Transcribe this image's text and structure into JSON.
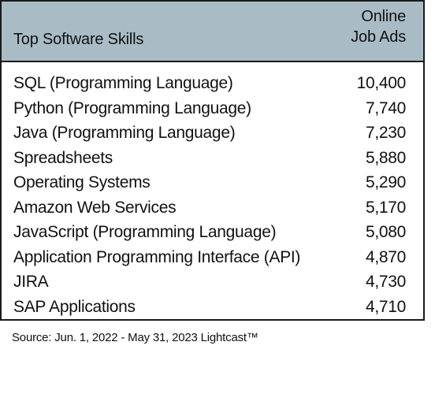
{
  "chart_data": {
    "type": "table",
    "columns": [
      "Top Software Skills",
      "Online Job Ads"
    ],
    "column_header_lines": {
      "skills": "Top Software Skills",
      "ads_line1": "Online",
      "ads_line2": "Job Ads"
    },
    "rows": [
      {
        "skill": "SQL (Programming Language)",
        "ads": "10,400",
        "value": 10400
      },
      {
        "skill": "Python (Programming Language)",
        "ads": "7,740",
        "value": 7740
      },
      {
        "skill": "Java (Programming Language)",
        "ads": "7,230",
        "value": 7230
      },
      {
        "skill": "Spreadsheets",
        "ads": "5,880",
        "value": 5880
      },
      {
        "skill": "Operating Systems",
        "ads": "5,290",
        "value": 5290
      },
      {
        "skill": "Amazon Web Services",
        "ads": "5,170",
        "value": 5170
      },
      {
        "skill": "JavaScript (Programming Language)",
        "ads": "5,080",
        "value": 5080
      },
      {
        "skill": "Application Programming Interface (API)",
        "ads": "4,870",
        "value": 4870
      },
      {
        "skill": "JIRA",
        "ads": "4,730",
        "value": 4730
      },
      {
        "skill": "SAP Applications",
        "ads": "4,710",
        "value": 4710
      }
    ],
    "source": "Source: Jun. 1, 2022 - May 31, 2023  Lightcast™"
  },
  "colors": {
    "header_background": "#a9bcc6",
    "border": "#1a1a1a",
    "text": "#111111"
  }
}
